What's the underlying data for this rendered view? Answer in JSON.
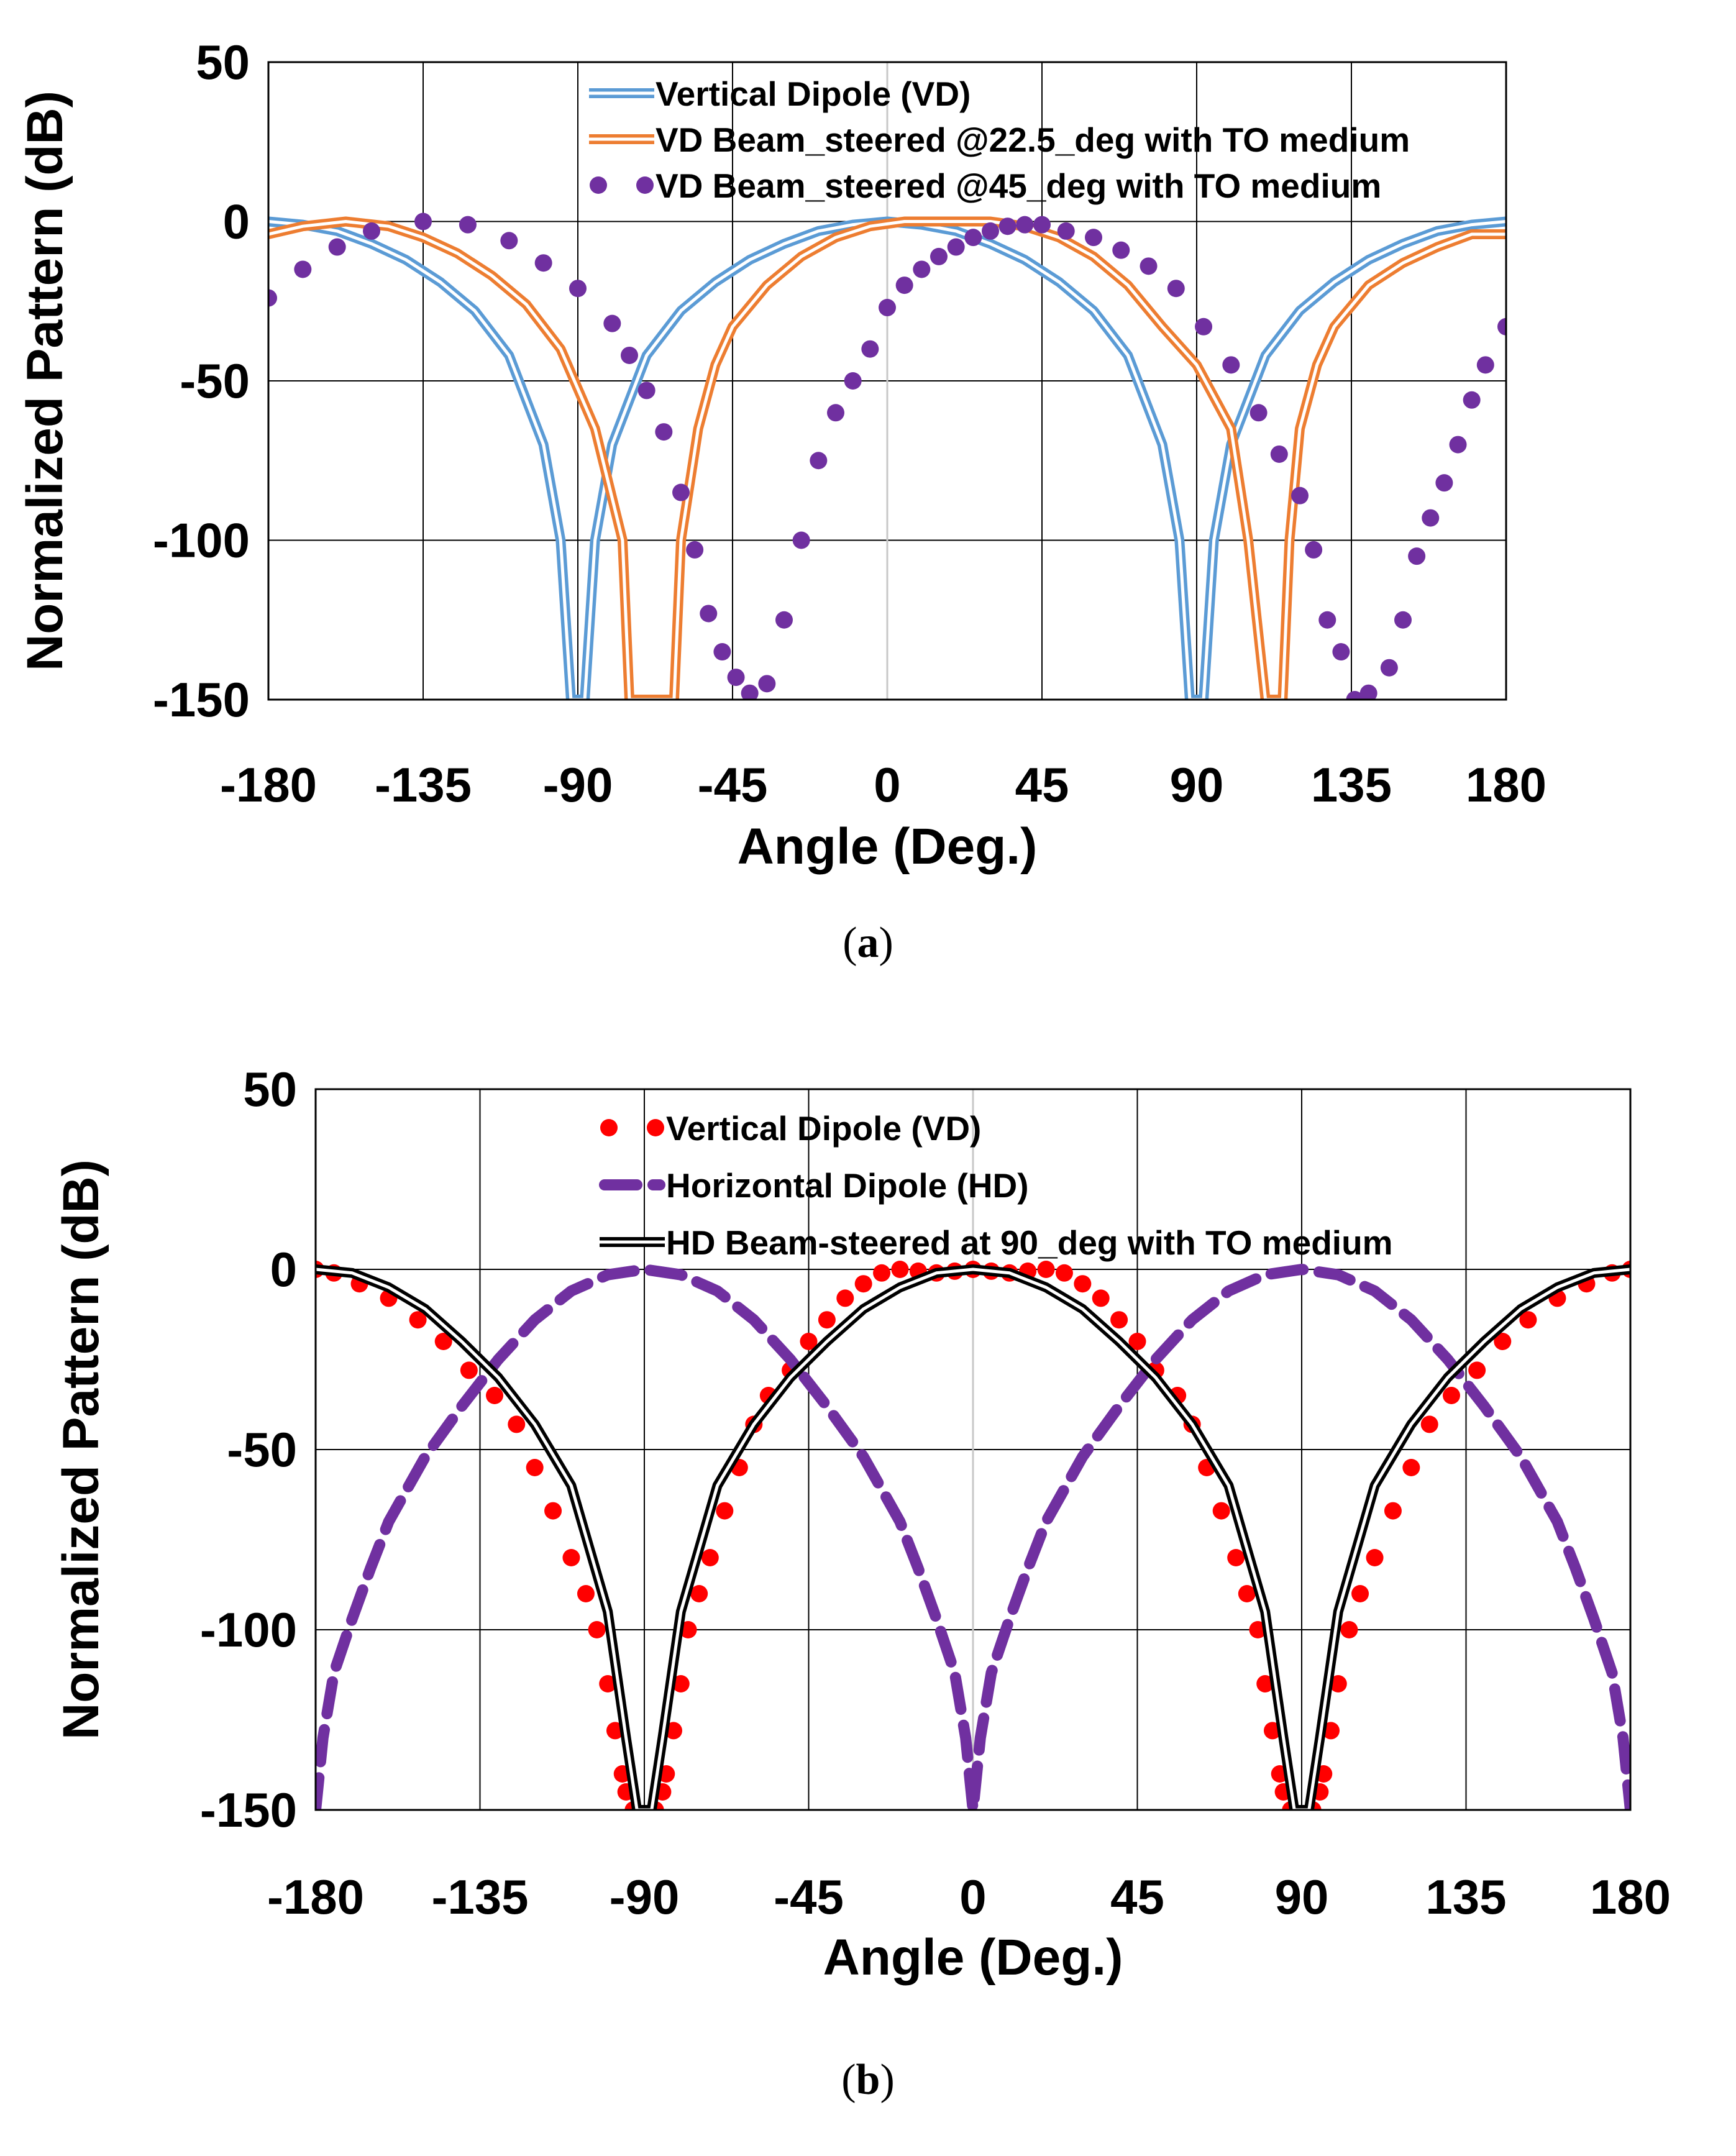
{
  "chart_data": [
    {
      "type": "line",
      "caption_letter": "a",
      "xlabel": "Angle (Deg.)",
      "ylabel": "Normalized Pattern (dB)",
      "xlim": [
        -180,
        180
      ],
      "ylim": [
        -150,
        50
      ],
      "x_ticks": [
        "-180",
        "-135",
        "-90",
        "-45",
        "0",
        "45",
        "90",
        "135",
        "180"
      ],
      "y_ticks": [
        "50",
        "0",
        "-50",
        "-100",
        "-150"
      ],
      "grid": true,
      "legend_position": "top-center",
      "series": [
        {
          "name": "Vertical Dipole (VD)",
          "color": "#5B9BD5",
          "style": "double-line",
          "x": [
            -180,
            -170,
            -160,
            -150,
            -140,
            -130,
            -120,
            -110,
            -100,
            -95,
            -92,
            -88,
            -85,
            -80,
            -70,
            -60,
            -50,
            -40,
            -30,
            -20,
            -10,
            0,
            10,
            20,
            30,
            40,
            50,
            60,
            70,
            80,
            85,
            88,
            92,
            95,
            100,
            110,
            120,
            130,
            140,
            150,
            160,
            170,
            180
          ],
          "y": [
            0,
            -1,
            -3,
            -7,
            -12,
            -19,
            -28,
            -42,
            -70,
            -100,
            -150,
            -150,
            -100,
            -70,
            -42,
            -28,
            -19,
            -12,
            -7,
            -3,
            -1,
            0,
            -1,
            -3,
            -7,
            -12,
            -19,
            -28,
            -42,
            -70,
            -100,
            -150,
            -150,
            -100,
            -70,
            -42,
            -28,
            -19,
            -12,
            -7,
            -3,
            -1,
            0
          ]
        },
        {
          "name": "VD Beam_steered @22.5_deg with TO medium",
          "color": "#ED7D31",
          "style": "double-line",
          "x": [
            -180,
            -170,
            -157.5,
            -145,
            -135,
            -125,
            -115,
            -105,
            -95,
            -85,
            -77,
            -75,
            -70,
            -67.5,
            -62,
            -60,
            -55,
            -50,
            -45,
            -35,
            -25,
            -15,
            -5,
            5,
            15,
            22.5,
            30,
            40,
            50,
            60,
            70,
            80,
            90,
            100,
            105,
            110,
            115,
            117,
            120,
            125,
            130,
            140,
            150,
            160,
            170,
            180
          ],
          "y": [
            -4,
            -1.5,
            0,
            -1.5,
            -5,
            -10,
            -17,
            -26,
            -40,
            -65,
            -100,
            -150,
            -150,
            -150,
            -150,
            -100,
            -65,
            -45,
            -33,
            -20,
            -11,
            -5,
            -1.5,
            0,
            0,
            0,
            0,
            -1.5,
            -5,
            -11,
            -20,
            -33,
            -45,
            -65,
            -100,
            -150,
            -150,
            -100,
            -65,
            -45,
            -33,
            -20,
            -13,
            -8,
            -4,
            -4
          ]
        },
        {
          "name": "VD Beam_steered @45_deg with TO medium",
          "color": "#7030A0",
          "style": "dots",
          "x": [
            -180,
            -170,
            -160,
            -150,
            -135,
            -122,
            -110,
            -100,
            -90,
            -80,
            -75,
            -70,
            -65,
            -60,
            -56,
            -52,
            -48,
            -44,
            -40,
            -35,
            -30,
            -25,
            -20,
            -15,
            -10,
            -5,
            0,
            5,
            10,
            15,
            20,
            25,
            30,
            35,
            40,
            45,
            52,
            60,
            68,
            76,
            84,
            92,
            100,
            108,
            114,
            120,
            124,
            128,
            132,
            136,
            140,
            146,
            150,
            154,
            158,
            162,
            166,
            170,
            174,
            180
          ],
          "y": [
            -24,
            -15,
            -8,
            -3,
            0,
            -1,
            -6,
            -13,
            -21,
            -32,
            -42,
            -53,
            -66,
            -85,
            -103,
            -123,
            -135,
            -143,
            -148,
            -145,
            -125,
            -100,
            -75,
            -60,
            -50,
            -40,
            -27,
            -20,
            -15,
            -11,
            -8,
            -5,
            -3,
            -1.5,
            -1,
            -1,
            -3,
            -5,
            -9,
            -14,
            -21,
            -33,
            -45,
            -60,
            -73,
            -86,
            -103,
            -125,
            -135,
            -150,
            -148,
            -140,
            -125,
            -105,
            -93,
            -82,
            -70,
            -56,
            -45,
            -33
          ]
        }
      ]
    },
    {
      "type": "line",
      "caption_letter": "b",
      "xlabel": "Angle (Deg.)",
      "ylabel": "Normalized Pattern (dB)",
      "xlim": [
        -180,
        180
      ],
      "ylim": [
        -150,
        50
      ],
      "x_ticks": [
        "-180",
        "-135",
        "-90",
        "-45",
        "0",
        "45",
        "90",
        "135",
        "180"
      ],
      "y_ticks": [
        "50",
        "0",
        "-50",
        "-100",
        "-150"
      ],
      "grid": true,
      "legend_position": "top-center",
      "series": [
        {
          "name": "Vertical Dipole (VD)",
          "color": "#FF0000",
          "style": "dots",
          "x": [
            -180,
            -175,
            -168,
            -160,
            -152,
            -145,
            -138,
            -131,
            -125,
            -120,
            -115,
            -110,
            -106,
            -103,
            -100,
            -98,
            -96,
            -95,
            -93,
            -87,
            -85,
            -84,
            -82,
            -80,
            -78,
            -75,
            -72,
            -68,
            -64,
            -60,
            -56,
            -50,
            -45,
            -40,
            -35,
            -30,
            -25,
            -20,
            -15,
            -10,
            -5,
            0,
            5,
            10,
            15,
            20,
            25,
            30,
            35,
            40,
            45,
            50,
            56,
            60,
            64,
            68,
            72,
            75,
            78,
            80,
            82,
            84,
            85,
            87,
            93,
            95,
            96,
            98,
            100,
            103,
            106,
            110,
            115,
            120,
            125,
            131,
            138,
            145,
            152,
            160,
            168,
            175,
            180
          ],
          "y": [
            0,
            -1,
            -4,
            -8,
            -14,
            -20,
            -28,
            -35,
            -43,
            -55,
            -67,
            -80,
            -90,
            -100,
            -115,
            -128,
            -140,
            -145,
            -150,
            -150,
            -145,
            -140,
            -128,
            -115,
            -100,
            -90,
            -80,
            -67,
            -55,
            -43,
            -35,
            -28,
            -20,
            -14,
            -8,
            -4,
            -1,
            0,
            -0.5,
            -1,
            -0.5,
            0,
            -0.5,
            -1,
            -0.5,
            0,
            -1,
            -4,
            -8,
            -14,
            -20,
            -28,
            -35,
            -43,
            -55,
            -67,
            -80,
            -90,
            -100,
            -115,
            -128,
            -140,
            -145,
            -150,
            -150,
            -145,
            -140,
            -128,
            -115,
            -100,
            -90,
            -80,
            -67,
            -55,
            -43,
            -35,
            -28,
            -20,
            -14,
            -8,
            -4,
            -1,
            0
          ]
        },
        {
          "name": "Horizontal Dipole (HD)",
          "color": "#7030A0",
          "style": "dashed",
          "x": [
            -180,
            -178,
            -175,
            -170,
            -165,
            -160,
            -150,
            -140,
            -130,
            -120,
            -110,
            -100,
            -90,
            -80,
            -70,
            -60,
            -50,
            -40,
            -30,
            -20,
            -15,
            -10,
            -5,
            -2,
            0,
            2,
            5,
            10,
            15,
            20,
            30,
            40,
            50,
            60,
            70,
            80,
            90,
            100,
            110,
            120,
            130,
            140,
            150,
            160,
            165,
            170,
            175,
            178,
            180
          ],
          "y": [
            -150,
            -130,
            -112,
            -97,
            -83,
            -70,
            -52,
            -38,
            -25,
            -14,
            -6,
            -1.5,
            0,
            -1.5,
            -6,
            -14,
            -25,
            -38,
            -52,
            -70,
            -83,
            -97,
            -112,
            -130,
            -150,
            -130,
            -112,
            -97,
            -83,
            -70,
            -52,
            -38,
            -25,
            -14,
            -6,
            -1.5,
            0,
            -1.5,
            -6,
            -14,
            -25,
            -38,
            -52,
            -70,
            -83,
            -97,
            -112,
            -130,
            -150
          ]
        },
        {
          "name": "HD Beam-steered at 90_deg with TO medium",
          "color": "#000000",
          "style": "double-line",
          "x": [
            -180,
            -170,
            -160,
            -150,
            -140,
            -130,
            -120,
            -110,
            -100,
            -95,
            -92,
            -88,
            -85,
            -80,
            -70,
            -60,
            -50,
            -40,
            -30,
            -20,
            -10,
            0,
            10,
            20,
            30,
            40,
            50,
            60,
            70,
            80,
            85,
            88,
            92,
            95,
            100,
            110,
            120,
            130,
            140,
            150,
            160,
            170,
            180
          ],
          "y": [
            0,
            -1,
            -5,
            -11,
            -20,
            -30,
            -43,
            -60,
            -95,
            -130,
            -150,
            -150,
            -130,
            -95,
            -60,
            -43,
            -30,
            -20,
            -11,
            -5,
            -1,
            0,
            -1,
            -5,
            -11,
            -20,
            -30,
            -43,
            -60,
            -95,
            -130,
            -150,
            -150,
            -130,
            -95,
            -60,
            -43,
            -30,
            -20,
            -11,
            -5,
            -1,
            0
          ]
        }
      ]
    }
  ]
}
